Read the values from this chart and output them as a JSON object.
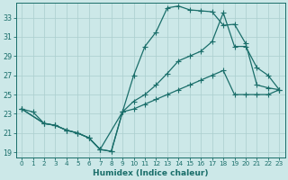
{
  "xlabel": "Humidex (Indice chaleur)",
  "bg_color": "#cce8e8",
  "grid_color": "#aacece",
  "line_color": "#1a6e6a",
  "xlim": [
    -0.5,
    23.5
  ],
  "ylim": [
    18.5,
    34.5
  ],
  "xticks": [
    0,
    1,
    2,
    3,
    4,
    5,
    6,
    7,
    8,
    9,
    10,
    11,
    12,
    13,
    14,
    15,
    16,
    17,
    18,
    19,
    20,
    21,
    22,
    23
  ],
  "yticks": [
    19,
    21,
    23,
    25,
    27,
    29,
    31,
    33
  ],
  "curve1_x": [
    0,
    1,
    2,
    3,
    4,
    5,
    6,
    7,
    8,
    9,
    10,
    11,
    12,
    13,
    14,
    15,
    16,
    17,
    18,
    19,
    20,
    21,
    22,
    23
  ],
  "curve1_y": [
    23.5,
    23.2,
    22.0,
    21.8,
    21.3,
    21.0,
    20.5,
    19.3,
    19.1,
    23.2,
    27.0,
    30.0,
    31.5,
    34.0,
    34.2,
    33.8,
    33.7,
    33.6,
    32.2,
    32.3,
    30.3,
    26.0,
    25.7,
    25.5
  ],
  "curve2_x": [
    0,
    2,
    3,
    4,
    5,
    6,
    7,
    8,
    9,
    10,
    11,
    12,
    13,
    14,
    15,
    16,
    17,
    18,
    19,
    20,
    21,
    22,
    23
  ],
  "curve2_y": [
    23.5,
    22.0,
    21.8,
    21.3,
    21.0,
    20.5,
    19.3,
    19.1,
    23.2,
    24.3,
    25.0,
    26.0,
    27.2,
    28.5,
    29.0,
    29.5,
    30.5,
    33.5,
    30.0,
    30.0,
    27.8,
    27.0,
    25.5
  ],
  "curve3_x": [
    0,
    2,
    3,
    4,
    5,
    6,
    7,
    9,
    10,
    11,
    12,
    13,
    14,
    15,
    16,
    17,
    18,
    19,
    20,
    21,
    22,
    23
  ],
  "curve3_y": [
    23.5,
    22.0,
    21.8,
    21.3,
    21.0,
    20.5,
    19.3,
    23.2,
    23.5,
    24.0,
    24.5,
    25.0,
    25.5,
    26.0,
    26.5,
    27.0,
    27.5,
    25.0,
    25.0,
    25.0,
    25.0,
    25.5
  ]
}
